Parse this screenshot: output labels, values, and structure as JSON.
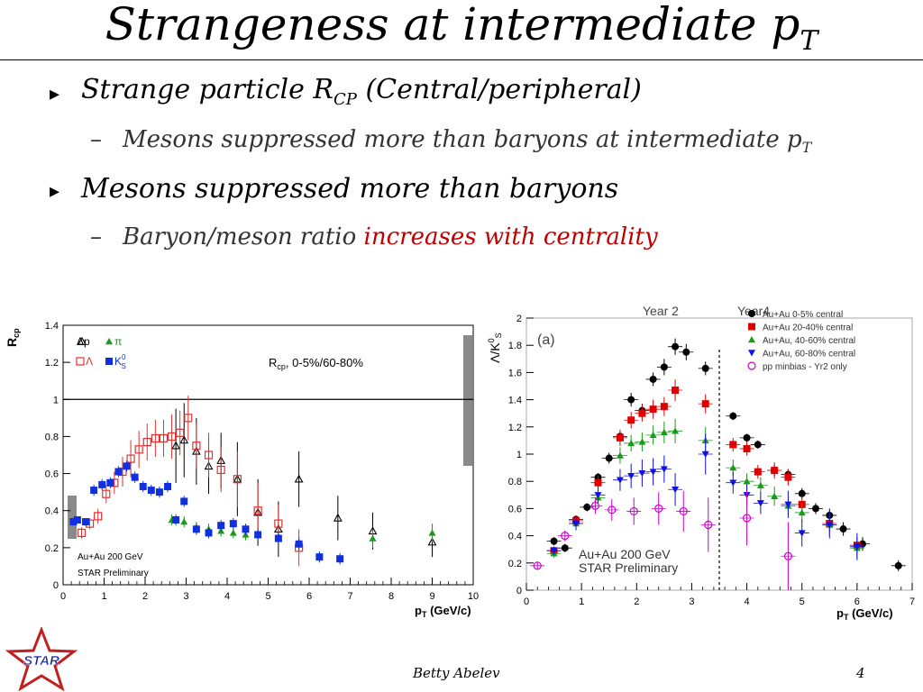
{
  "slide": {
    "title_main": "Strangeness at intermediate p",
    "title_sub": "T",
    "bullet1_pre": "Strange particle R",
    "bullet1_sub": "CP",
    "bullet1_post": " (Central/peripheral)",
    "sub1_text": "Mesons suppressed more than baryons at intermediate p",
    "sub1_sub": "T",
    "bullet2": "Mesons suppressed more than baryons",
    "sub2_pre": "Baryon/meson ratio ",
    "sub2_red": "increases with centrality",
    "dash": "–",
    "arrow": "▸",
    "footer_name": "Betty Abelev",
    "page_number": "4",
    "logo_text": "STAR"
  },
  "chart_data": [
    {
      "type": "scatter",
      "ylabel": "R",
      "ylabel_sub": "cp",
      "xlabel": "p",
      "xlabel_sub": "T",
      "xlabel_unit": " (GeV/c)",
      "annotation": "R",
      "annotation_sub": "cp",
      "annotation_tail": ", 0-5%/60-80%",
      "text1": "Au+Au 200 GeV",
      "text2": "STAR Preliminary",
      "xlim": [
        0,
        10
      ],
      "ylim": [
        0,
        1.4
      ],
      "xticks": [
        "0",
        "1",
        "2",
        "3",
        "4",
        "5",
        "6",
        "7",
        "8",
        "9",
        "10"
      ],
      "yticks": [
        "0",
        "0.2",
        "0.4",
        "0.6",
        "0.8",
        "1",
        "1.2",
        "1.4"
      ],
      "reference_line_y": 1,
      "legend": [
        {
          "label": "p",
          "prefix": "Δ",
          "marker": "open-triangle",
          "color": "#000000"
        },
        {
          "label": "π",
          "marker": "triangle",
          "color": "#1a9a1a"
        },
        {
          "label": "Λ",
          "marker": "open-square",
          "color": "#e03030"
        },
        {
          "label": "K",
          "sup": "0",
          "sub": "S",
          "marker": "square",
          "color": "#1030e0"
        }
      ],
      "series": [
        {
          "name": "p",
          "marker": "open-triangle",
          "color": "#000000",
          "x": [
            2.75,
            2.95,
            3.25,
            3.55,
            3.85,
            4.25,
            4.75,
            5.25,
            5.75,
            6.7,
            7.55,
            9.0
          ],
          "y": [
            0.75,
            0.78,
            0.72,
            0.64,
            0.67,
            0.57,
            0.39,
            0.3,
            0.57,
            0.36,
            0.29,
            0.23
          ],
          "err": [
            0.2,
            0.2,
            0.18,
            0.15,
            0.15,
            0.2,
            0.18,
            0.15,
            0.15,
            0.12,
            0.1,
            0.08
          ]
        },
        {
          "name": "π",
          "marker": "triangle",
          "color": "#1a9a1a",
          "x": [
            2.65,
            2.95,
            3.25,
            3.55,
            3.85,
            4.15,
            4.45,
            4.75,
            5.25,
            5.75,
            7.55,
            9.0
          ],
          "y": [
            0.35,
            0.34,
            0.31,
            0.3,
            0.29,
            0.28,
            0.27,
            0.27,
            0.26,
            0.22,
            0.25,
            0.28
          ],
          "err": [
            0.03,
            0.03,
            0.03,
            0.03,
            0.03,
            0.03,
            0.03,
            0.03,
            0.04,
            0.04,
            0.05,
            0.05
          ]
        },
        {
          "name": "Λ",
          "marker": "open-square",
          "color": "#e03030",
          "x": [
            0.45,
            0.65,
            0.85,
            1.05,
            1.25,
            1.45,
            1.65,
            1.85,
            2.05,
            2.25,
            2.45,
            2.65,
            2.85,
            3.05,
            3.25,
            3.55,
            3.85,
            4.25,
            4.75,
            5.25,
            5.75
          ],
          "y": [
            0.28,
            0.33,
            0.37,
            0.49,
            0.55,
            0.61,
            0.68,
            0.73,
            0.77,
            0.79,
            0.79,
            0.8,
            0.82,
            0.9,
            0.75,
            0.7,
            0.62,
            0.57,
            0.4,
            0.33,
            0.2
          ],
          "err": [
            0.03,
            0.03,
            0.04,
            0.05,
            0.06,
            0.08,
            0.1,
            0.1,
            0.1,
            0.1,
            0.1,
            0.12,
            0.12,
            0.12,
            0.12,
            0.12,
            0.12,
            0.15,
            0.15,
            0.1,
            0.1
          ]
        },
        {
          "name": "K0S",
          "marker": "square",
          "color": "#1030e0",
          "x": [
            0.25,
            0.35,
            0.55,
            0.75,
            0.95,
            1.15,
            1.35,
            1.55,
            1.75,
            1.95,
            2.15,
            2.35,
            2.55,
            2.75,
            2.95,
            3.25,
            3.55,
            3.85,
            4.15,
            4.45,
            4.75,
            5.25,
            5.75,
            6.25,
            6.75
          ],
          "y": [
            0.34,
            0.35,
            0.34,
            0.51,
            0.54,
            0.55,
            0.61,
            0.64,
            0.58,
            0.53,
            0.51,
            0.5,
            0.53,
            0.35,
            0.45,
            0.3,
            0.28,
            0.32,
            0.33,
            0.3,
            0.27,
            0.25,
            0.22,
            0.15,
            0.14
          ],
          "err": [
            0.02,
            0.02,
            0.02,
            0.03,
            0.03,
            0.03,
            0.03,
            0.03,
            0.03,
            0.03,
            0.03,
            0.03,
            0.03,
            0.03,
            0.03,
            0.03,
            0.03,
            0.03,
            0.03,
            0.03,
            0.03,
            0.03,
            0.03,
            0.03,
            0.03
          ]
        }
      ]
    },
    {
      "type": "scatter",
      "ylabel": "Λ/K",
      "ylabel_sup": "0",
      "ylabel_sub": "S",
      "xlabel": "p",
      "xlabel_sub": "T",
      "xlabel_unit": "   (GeV/c)",
      "panel_label": "(a)",
      "header_left": "Year 2",
      "header_right": "Year4",
      "text1": "Au+Au 200 GeV",
      "text2": "STAR Preliminary",
      "xlim": [
        0,
        7
      ],
      "ylim": [
        0,
        2
      ],
      "xticks": [
        "0",
        "1",
        "2",
        "3",
        "4",
        "5",
        "6",
        "7"
      ],
      "yticks": [
        "0",
        "0.2",
        "0.4",
        "0.6",
        "0.8",
        "1",
        "1.2",
        "1.4",
        "1.6",
        "1.8",
        "2"
      ],
      "divider_x": 3.5,
      "legend": [
        {
          "label": "Au+Au 0-5% central",
          "marker": "circle",
          "color": "#000000"
        },
        {
          "label": "Au+Au 20-40% central",
          "marker": "square",
          "color": "#e00000"
        },
        {
          "label": "Au+Au, 40-60% central",
          "marker": "triangle",
          "color": "#1a9a1a"
        },
        {
          "label": "Au+Au, 60-80% central",
          "marker": "triangle-down",
          "color": "#1010e0"
        },
        {
          "label": "pp minbias - Yr2 only",
          "marker": "open-circle",
          "color": "#cc00cc"
        }
      ],
      "series": [
        {
          "name": "Au+Au 0-5% central",
          "marker": "circle",
          "color": "#000000",
          "x": [
            0.5,
            0.7,
            0.9,
            1.1,
            1.3,
            1.5,
            1.7,
            1.9,
            2.1,
            2.3,
            2.5,
            2.7,
            2.9,
            3.25,
            3.75,
            4.0,
            4.2,
            4.5,
            4.75,
            5.0,
            5.25,
            5.5,
            5.75,
            6.1,
            6.75
          ],
          "y": [
            0.36,
            0.31,
            0.52,
            0.61,
            0.83,
            0.97,
            1.13,
            1.4,
            1.32,
            1.55,
            1.64,
            1.79,
            1.75,
            1.63,
            1.28,
            1.12,
            1.07,
            0.88,
            0.85,
            0.71,
            0.6,
            0.55,
            0.45,
            0.34,
            0.18
          ],
          "err": [
            0.03,
            0.03,
            0.03,
            0.03,
            0.03,
            0.04,
            0.04,
            0.05,
            0.05,
            0.05,
            0.06,
            0.06,
            0.06,
            0.05,
            0.03,
            0.03,
            0.03,
            0.04,
            0.04,
            0.04,
            0.04,
            0.05,
            0.05,
            0.05,
            0.04
          ]
        },
        {
          "name": "Au+Au 20-40% central",
          "marker": "square",
          "color": "#e00000",
          "x": [
            0.5,
            0.9,
            1.3,
            1.7,
            1.9,
            2.1,
            2.3,
            2.5,
            2.7,
            3.25,
            3.75,
            4.0,
            4.2,
            4.5,
            4.75,
            5.0,
            5.5,
            6.0
          ],
          "y": [
            0.29,
            0.51,
            0.79,
            1.12,
            1.25,
            1.3,
            1.33,
            1.35,
            1.47,
            1.37,
            1.07,
            1.04,
            0.87,
            0.88,
            0.83,
            0.63,
            0.49,
            0.33
          ],
          "err": [
            0.03,
            0.04,
            0.05,
            0.06,
            0.06,
            0.06,
            0.07,
            0.07,
            0.08,
            0.07,
            0.05,
            0.05,
            0.05,
            0.06,
            0.06,
            0.06,
            0.06,
            0.06
          ]
        },
        {
          "name": "Au+Au, 40-60% central",
          "marker": "triangle",
          "color": "#1a9a1a",
          "x": [
            0.5,
            0.9,
            1.3,
            1.7,
            1.9,
            2.1,
            2.3,
            2.5,
            2.7,
            3.25,
            3.75,
            4.0,
            4.25,
            4.5,
            4.75,
            5.0,
            5.5,
            6.0
          ],
          "y": [
            0.27,
            0.49,
            0.68,
            0.99,
            1.08,
            1.09,
            1.14,
            1.16,
            1.17,
            1.1,
            0.9,
            0.8,
            0.77,
            0.69,
            0.62,
            0.57,
            0.48,
            0.31
          ],
          "err": [
            0.03,
            0.04,
            0.05,
            0.06,
            0.06,
            0.07,
            0.07,
            0.08,
            0.09,
            0.1,
            0.06,
            0.06,
            0.06,
            0.07,
            0.07,
            0.07,
            0.08,
            0.08
          ]
        },
        {
          "name": "Au+Au, 60-80% central",
          "marker": "triangle-down",
          "color": "#1010e0",
          "x": [
            0.5,
            0.9,
            1.3,
            1.7,
            1.9,
            2.1,
            2.3,
            2.5,
            2.7,
            3.25,
            3.75,
            4.0,
            4.25,
            4.75,
            5.0,
            5.5,
            6.0
          ],
          "y": [
            0.29,
            0.49,
            0.7,
            0.81,
            0.84,
            0.86,
            0.87,
            0.89,
            0.74,
            1.0,
            0.79,
            0.7,
            0.64,
            0.63,
            0.42,
            0.48,
            0.32
          ],
          "err": [
            0.03,
            0.05,
            0.06,
            0.08,
            0.09,
            0.1,
            0.1,
            0.1,
            0.12,
            0.15,
            0.08,
            0.08,
            0.08,
            0.1,
            0.1,
            0.1,
            0.1
          ]
        },
        {
          "name": "pp minbias - Yr2 only",
          "marker": "open-circle",
          "color": "#cc00cc",
          "x": [
            0.2,
            0.7,
            1.25,
            1.55,
            1.95,
            2.4,
            2.85,
            3.3,
            4.0,
            4.75
          ],
          "y": [
            0.18,
            0.4,
            0.62,
            0.59,
            0.58,
            0.6,
            0.58,
            0.48,
            0.53,
            0.25
          ],
          "err": [
            0.03,
            0.04,
            0.06,
            0.08,
            0.1,
            0.12,
            0.15,
            0.2,
            0.2,
            0.25
          ]
        }
      ]
    }
  ]
}
